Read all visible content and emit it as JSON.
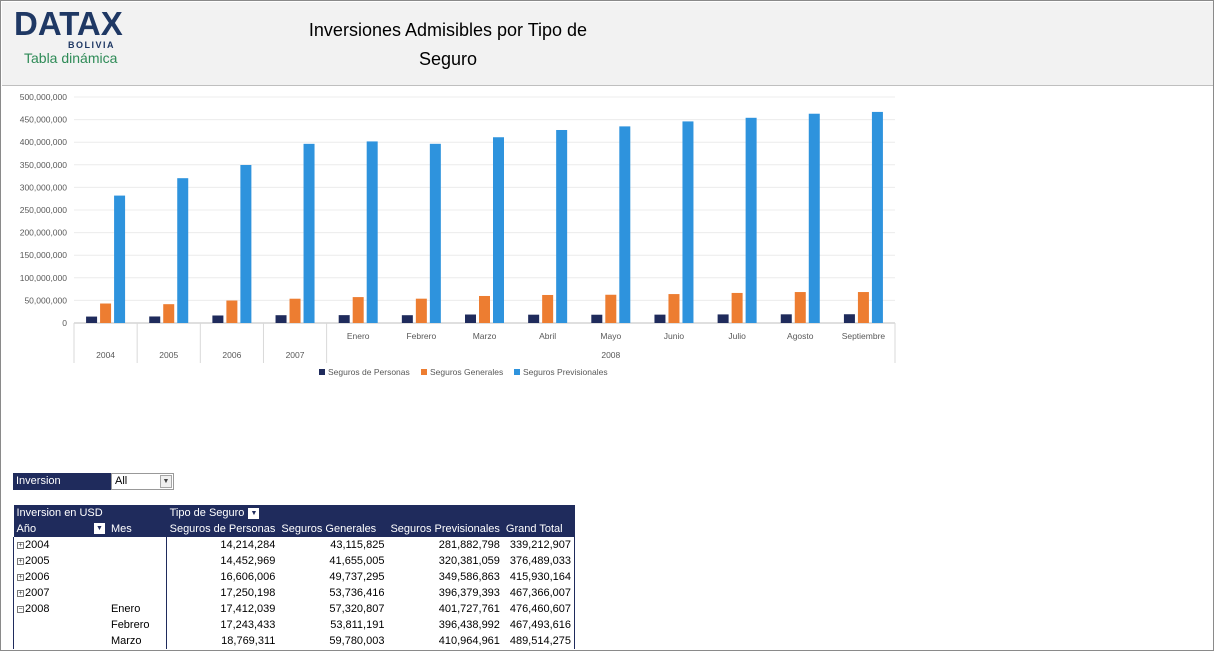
{
  "header": {
    "logo_main": "DATAX",
    "logo_sub": "BOLIVIA",
    "logo_tag": "Tabla dinámica",
    "title_line1": "Inversiones Admisibles por Tipo de",
    "title_line2": "Seguro"
  },
  "colors": {
    "personas": "#1f2b5c",
    "generales": "#ed7d31",
    "previsionales": "#2e93dd",
    "header_bg": "#f2f2f2",
    "pivot_header": "#1f2b5c"
  },
  "chart_data": {
    "type": "bar",
    "categories": [
      "2004",
      "2005",
      "2006",
      "2007",
      "Enero",
      "Febrero",
      "Marzo",
      "Abril",
      "Mayo",
      "Junio",
      "Julio",
      "Agosto",
      "Septiembre"
    ],
    "category_groups": [
      {
        "label": "2004",
        "span": 1
      },
      {
        "label": "2005",
        "span": 1
      },
      {
        "label": "2006",
        "span": 1
      },
      {
        "label": "2007",
        "span": 1
      },
      {
        "label": "2008",
        "span": 9
      }
    ],
    "series": [
      {
        "name": "Seguros de Personas",
        "values": [
          14214284,
          14452969,
          16606006,
          17250198,
          17412039,
          17243433,
          18769311,
          18400000,
          18300000,
          18500000,
          19000000,
          19200000,
          19400000
        ]
      },
      {
        "name": "Seguros Generales",
        "values": [
          43115825,
          41655005,
          49737295,
          53736416,
          57320807,
          53811191,
          59780003,
          62000000,
          62500000,
          64000000,
          66500000,
          68500000,
          68500000
        ]
      },
      {
        "name": "Seguros Previsionales",
        "values": [
          281882798,
          320381059,
          349586863,
          396379393,
          401727761,
          396438992,
          410964961,
          427000000,
          435000000,
          446000000,
          454000000,
          463000000,
          467000000
        ]
      }
    ],
    "y_ticks": [
      "500,000,000",
      "450,000,000",
      "400,000,000",
      "350,000,000",
      "300,000,000",
      "250,000,000",
      "200,000,000",
      "150,000,000",
      "100,000,000",
      "50,000,000",
      "0"
    ],
    "ylim": [
      0,
      500000000
    ],
    "grid": true,
    "legend": "bottom"
  },
  "filter": {
    "label": "Inversion Admisible",
    "value": "All"
  },
  "pivot": {
    "header_row1": {
      "col_a": "Inversion en USD",
      "col_b": "Tipo de Seguro"
    },
    "header_row2": {
      "ano": "Año",
      "mes": "Mes",
      "personas": "Seguros de Personas",
      "generales": "Seguros Generales",
      "previsionales": "Seguros Previsionales",
      "total": "Grand Total"
    },
    "rows": [
      {
        "ano": "2004",
        "mes": "",
        "personas": "14,214,284",
        "generales": "43,115,825",
        "previsionales": "281,882,798",
        "total": "339,212,907"
      },
      {
        "ano": "2005",
        "mes": "",
        "personas": "14,452,969",
        "generales": "41,655,005",
        "previsionales": "320,381,059",
        "total": "376,489,033"
      },
      {
        "ano": "2006",
        "mes": "",
        "personas": "16,606,006",
        "generales": "49,737,295",
        "previsionales": "349,586,863",
        "total": "415,930,164"
      },
      {
        "ano": "2007",
        "mes": "",
        "personas": "17,250,198",
        "generales": "53,736,416",
        "previsionales": "396,379,393",
        "total": "467,366,007"
      },
      {
        "ano": "2008",
        "mes": "Enero",
        "personas": "17,412,039",
        "generales": "57,320,807",
        "previsionales": "401,727,761",
        "total": "476,460,607"
      },
      {
        "ano": "",
        "mes": "Febrero",
        "personas": "17,243,433",
        "generales": "53,811,191",
        "previsionales": "396,438,992",
        "total": "467,493,616"
      },
      {
        "ano": "",
        "mes": "Marzo",
        "personas": "18,769,311",
        "generales": "59,780,003",
        "previsionales": "410,964,961",
        "total": "489,514,275"
      }
    ]
  }
}
